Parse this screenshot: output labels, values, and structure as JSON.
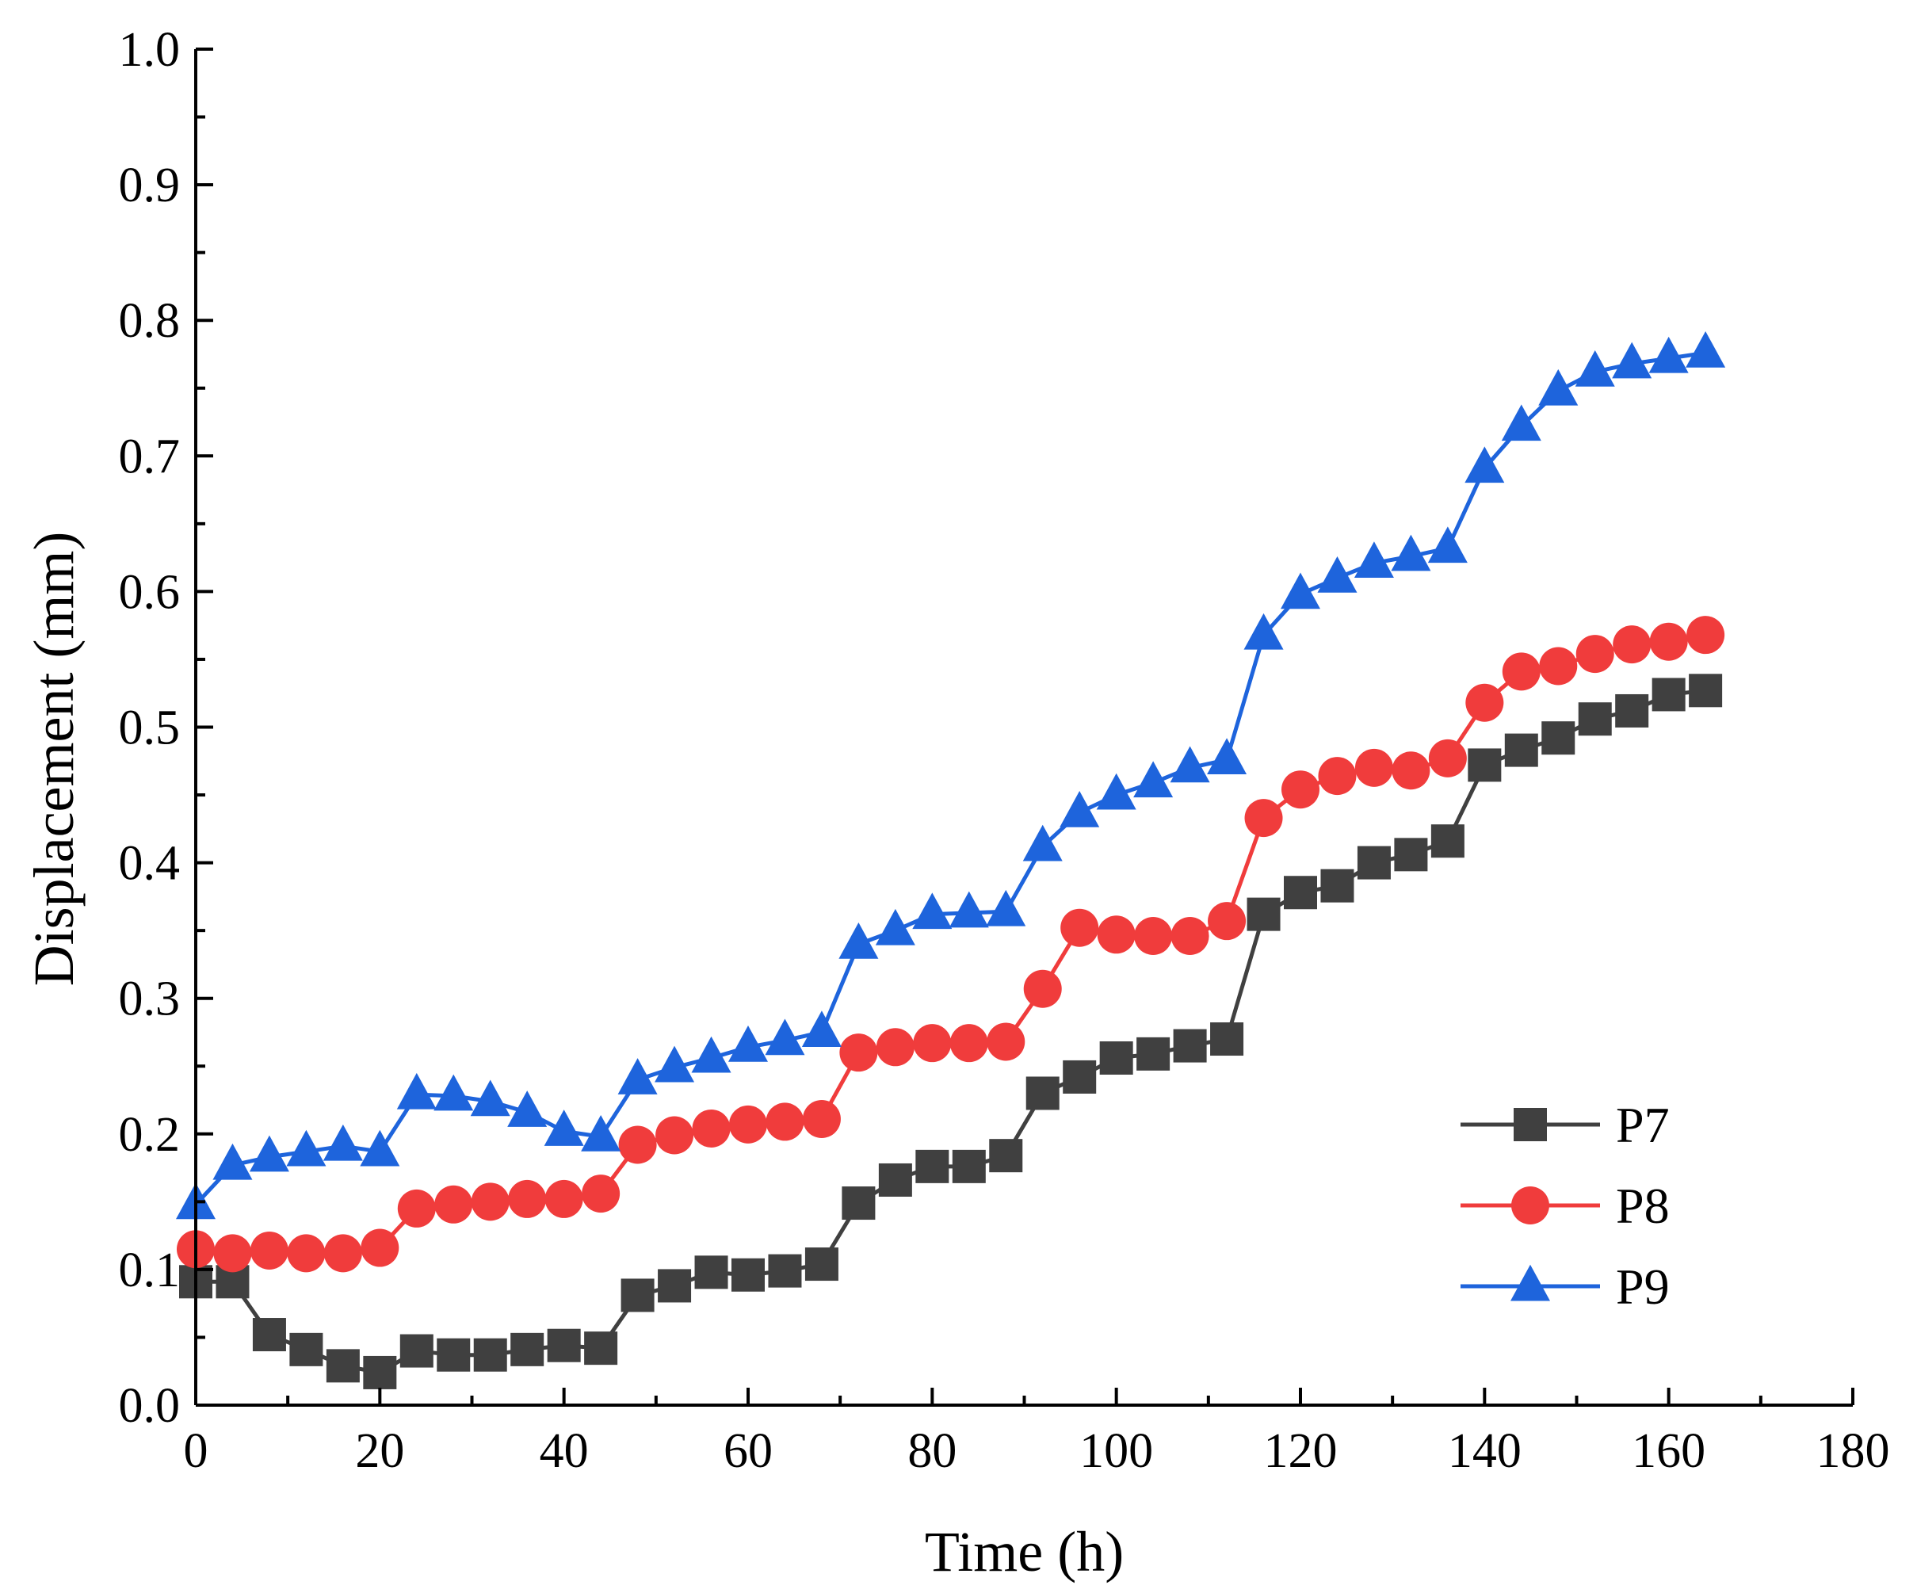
{
  "chart_data": {
    "type": "line",
    "title": "",
    "xlabel": "Time (h)",
    "ylabel": "Displacement (mm)",
    "xlim": [
      0,
      180
    ],
    "ylim": [
      0.0,
      1.0
    ],
    "x_ticks": [
      "0",
      "20",
      "40",
      "60",
      "80",
      "100",
      "120",
      "140",
      "160",
      "180"
    ],
    "y_ticks": [
      "0.0",
      "0.1",
      "0.2",
      "0.3",
      "0.4",
      "0.5",
      "0.6",
      "0.7",
      "0.8",
      "0.9",
      "1.0"
    ],
    "grid": false,
    "legend_position": "bottom-right",
    "x": [
      0,
      4,
      8,
      12,
      16,
      20,
      24,
      28,
      32,
      36,
      40,
      44,
      48,
      52,
      56,
      60,
      64,
      68,
      72,
      76,
      80,
      84,
      88,
      92,
      96,
      100,
      104,
      108,
      112,
      116,
      120,
      124,
      128,
      132,
      136,
      140,
      144,
      148,
      152,
      156,
      160,
      164
    ],
    "series": [
      {
        "name": "P7",
        "color": "#404040",
        "marker": "square",
        "values": [
          0.091,
          0.091,
          0.052,
          0.041,
          0.029,
          0.024,
          0.04,
          0.037,
          0.037,
          0.041,
          0.044,
          0.042,
          0.081,
          0.088,
          0.098,
          0.096,
          0.099,
          0.104,
          0.149,
          0.166,
          0.176,
          0.176,
          0.184,
          0.23,
          0.242,
          0.256,
          0.259,
          0.265,
          0.27,
          0.362,
          0.378,
          0.383,
          0.4,
          0.406,
          0.416,
          0.472,
          0.483,
          0.492,
          0.506,
          0.512,
          0.524,
          0.527
        ]
      },
      {
        "name": "P8",
        "color": "#f03c3c",
        "marker": "circle",
        "values": [
          0.115,
          0.112,
          0.114,
          0.112,
          0.112,
          0.116,
          0.145,
          0.148,
          0.15,
          0.152,
          0.152,
          0.156,
          0.192,
          0.199,
          0.204,
          0.207,
          0.209,
          0.211,
          0.26,
          0.264,
          0.267,
          0.267,
          0.268,
          0.307,
          0.352,
          0.347,
          0.346,
          0.346,
          0.357,
          0.433,
          0.454,
          0.464,
          0.47,
          0.468,
          0.477,
          0.518,
          0.541,
          0.545,
          0.554,
          0.561,
          0.563,
          0.568
        ]
      },
      {
        "name": "P9",
        "color": "#1e64dc",
        "marker": "triangle",
        "values": [
          0.148,
          0.177,
          0.183,
          0.187,
          0.191,
          0.187,
          0.229,
          0.228,
          0.224,
          0.216,
          0.202,
          0.198,
          0.24,
          0.249,
          0.256,
          0.264,
          0.269,
          0.275,
          0.34,
          0.35,
          0.362,
          0.363,
          0.364,
          0.412,
          0.437,
          0.45,
          0.459,
          0.47,
          0.476,
          0.568,
          0.598,
          0.61,
          0.621,
          0.626,
          0.632,
          0.691,
          0.722,
          0.748,
          0.762,
          0.768,
          0.772,
          0.776
        ]
      }
    ]
  }
}
